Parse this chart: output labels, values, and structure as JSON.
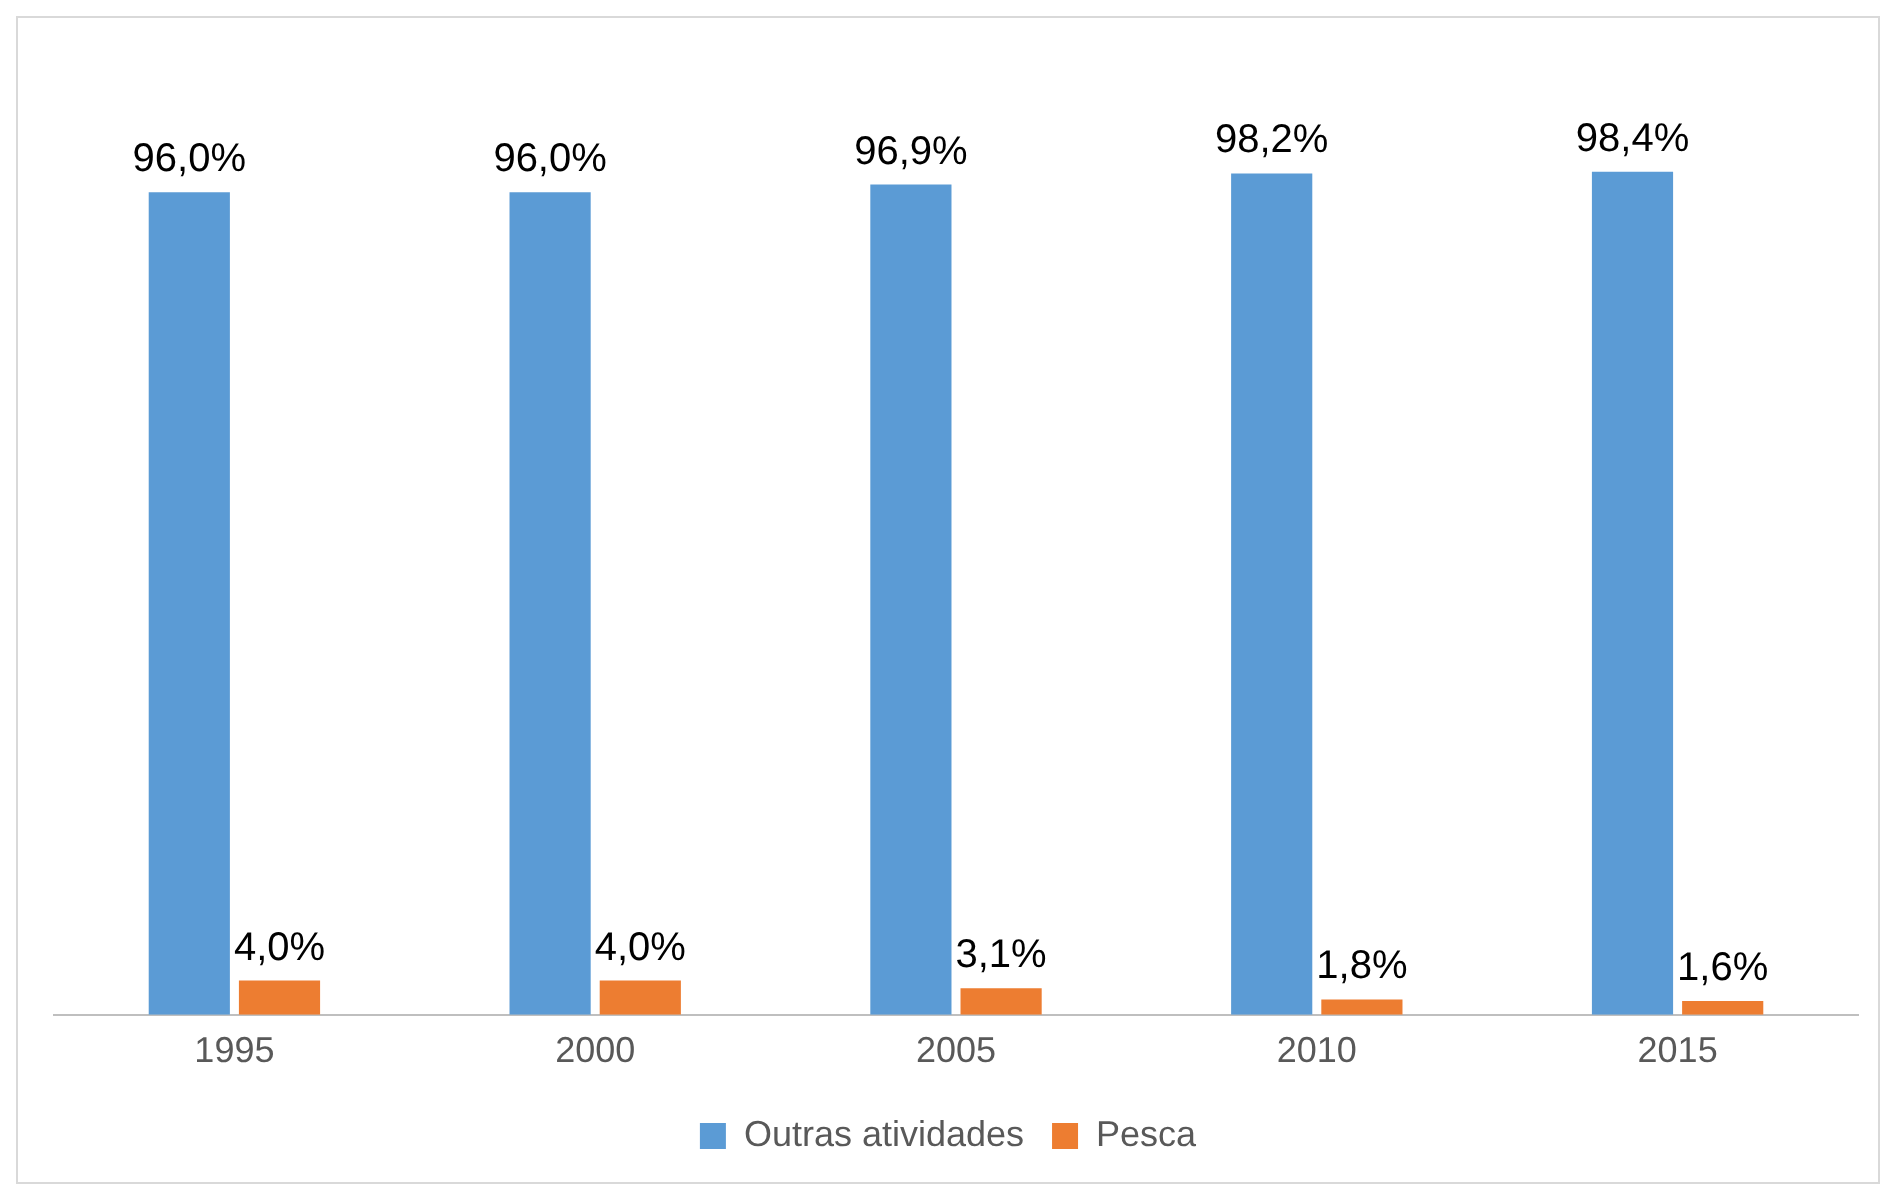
{
  "chart_data": {
    "type": "bar",
    "categories": [
      "1995",
      "2000",
      "2005",
      "2010",
      "2015"
    ],
    "series": [
      {
        "name": "Outras atividades",
        "color": "#5b9bd5",
        "values": [
          96.0,
          96.0,
          96.9,
          98.2,
          98.4
        ],
        "value_labels": [
          "96,0%",
          "96,0%",
          "96,9%",
          "98,2%",
          "98,4%"
        ]
      },
      {
        "name": "Pesca",
        "color": "#ed7d31",
        "values": [
          4.0,
          4.0,
          3.1,
          1.8,
          1.6
        ],
        "value_labels": [
          "4,0%",
          "4,0%",
          "3,1%",
          "1,8%",
          "1,6%"
        ]
      }
    ],
    "relative": false,
    "grid": false,
    "legend": "bottom"
  }
}
